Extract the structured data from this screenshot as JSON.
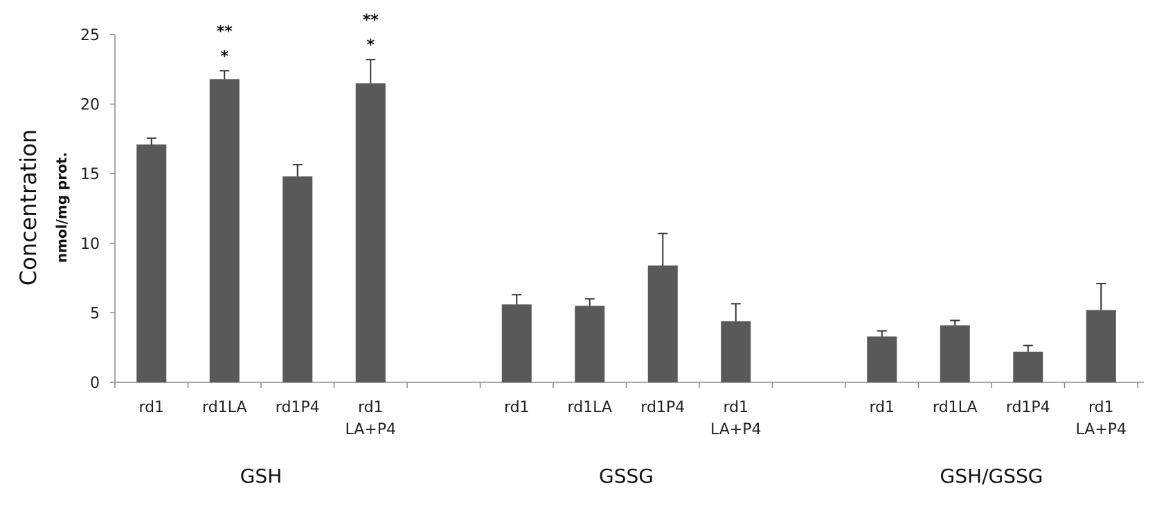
{
  "chart_data": {
    "type": "bar",
    "ylabel": "Concentration",
    "ylabel_unit": "nmol/mg prot.",
    "ylim": [
      0,
      25
    ],
    "yticks": [
      0,
      5,
      10,
      15,
      20,
      25
    ],
    "bar_color": "#595959",
    "groups": [
      {
        "name": "GSH",
        "bars": [
          {
            "label": [
              "rd1"
            ],
            "value": 17.1,
            "error": 0.45,
            "marks": []
          },
          {
            "label": [
              "rd1LA"
            ],
            "value": 21.8,
            "error": 0.6,
            "marks": [
              "**",
              "*"
            ]
          },
          {
            "label": [
              "rd1P4"
            ],
            "value": 14.8,
            "error": 0.85,
            "marks": []
          },
          {
            "label": [
              "rd1",
              "LA+P4"
            ],
            "value": 21.5,
            "error": 1.7,
            "marks": [
              "**",
              "*"
            ]
          }
        ]
      },
      {
        "name": "GSSG",
        "bars": [
          {
            "label": [
              "rd1"
            ],
            "value": 5.6,
            "error": 0.7,
            "marks": []
          },
          {
            "label": [
              "rd1LA"
            ],
            "value": 5.5,
            "error": 0.5,
            "marks": []
          },
          {
            "label": [
              "rd1P4"
            ],
            "value": 8.4,
            "error": 2.3,
            "marks": []
          },
          {
            "label": [
              "rd1",
              "LA+P4"
            ],
            "value": 4.4,
            "error": 1.25,
            "marks": []
          }
        ]
      },
      {
        "name": "GSH/GSSG",
        "bars": [
          {
            "label": [
              "rd1"
            ],
            "value": 3.3,
            "error": 0.4,
            "marks": []
          },
          {
            "label": [
              "rd1LA"
            ],
            "value": 4.1,
            "error": 0.35,
            "marks": []
          },
          {
            "label": [
              "rd1P4"
            ],
            "value": 2.2,
            "error": 0.45,
            "marks": []
          },
          {
            "label": [
              "rd1",
              "LA+P4"
            ],
            "value": 5.2,
            "error": 1.9,
            "marks": []
          }
        ]
      }
    ]
  }
}
